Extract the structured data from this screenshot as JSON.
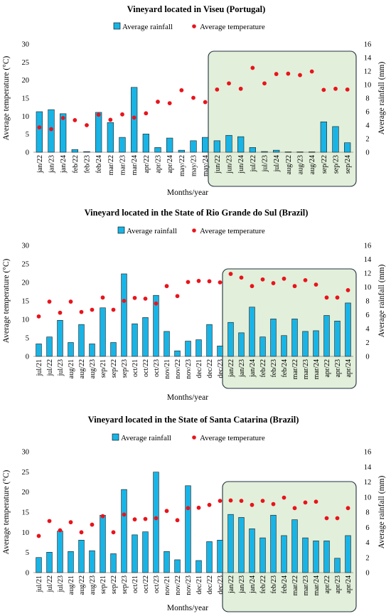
{
  "chart_data": [
    {
      "type": "bar",
      "title": "Vineyard located in Viseu (Portugal)",
      "xlabel": "Months/year",
      "ylabel_left": "Average temperature (°C)",
      "ylabel_right": "Average rainfall (mm)",
      "ylim_left": [
        0,
        30
      ],
      "yticks_left": [
        "0",
        "5",
        "10",
        "15",
        "20",
        "25",
        "30"
      ],
      "ylim_right": [
        0,
        16
      ],
      "yticks_right": [
        "0",
        "2",
        "4",
        "6",
        "8",
        "10",
        "12",
        "14",
        "16"
      ],
      "legend": {
        "rainfall": "Average rainfall",
        "temperature": "Average temperature"
      },
      "categories": [
        "jan/22",
        "jan/23",
        "jan/24",
        "feb/22",
        "feb/23",
        "feb/24",
        "mar/22",
        "mar/23",
        "mar/24",
        "apr/22",
        "apr/23",
        "apr/24",
        "may/22",
        "may/23",
        "may/24",
        "jun/22",
        "jun/23",
        "jun/24",
        "jul/22",
        "jul/23",
        "jul/24",
        "aug/22",
        "aug/23",
        "aug/24",
        "sep/22",
        "sep/23",
        "sep/24"
      ],
      "series": [
        {
          "name": "Average rainfall",
          "axis": "right",
          "kind": "bar",
          "color": "#19b4e6",
          "values": [
            6.0,
            6.3,
            5.7,
            0.4,
            0.1,
            5.9,
            4.4,
            2.2,
            9.6,
            2.7,
            0.7,
            2.1,
            0.3,
            1.7,
            2.2,
            1.7,
            2.5,
            2.3,
            0.7,
            0.1,
            0.3,
            0.05,
            0.05,
            0.05,
            4.5,
            3.8,
            1.4
          ]
        },
        {
          "name": "Average temperature",
          "axis": "left",
          "kind": "point",
          "color": "#e8141c",
          "values": [
            6.9,
            6.4,
            9.5,
            8.9,
            7.5,
            10.4,
            9.0,
            10.5,
            9.6,
            10.8,
            14.0,
            13.6,
            17.2,
            15.1,
            13.9,
            17.4,
            19.1,
            17.6,
            23.4,
            19.1,
            21.7,
            21.8,
            21.4,
            22.4,
            17.3,
            17.6,
            17.4
          ]
        }
      ],
      "highlight_from": "jun/22"
    },
    {
      "type": "bar",
      "title": "Vineyard located in the State of Rio Grande do Sul (Brazil)",
      "xlabel": "Months/year",
      "ylabel_left": "Average temperature (°C)",
      "ylabel_right": "Average rainfall (mm)",
      "ylim_left": [
        0,
        30
      ],
      "yticks_left": [
        "0",
        "5",
        "10",
        "15",
        "20",
        "25",
        "30"
      ],
      "ylim_right": [
        0,
        16
      ],
      "yticks_right": [
        "0",
        "2",
        "4",
        "6",
        "8",
        "10",
        "12",
        "14",
        "16"
      ],
      "legend": {
        "rainfall": "Average rainfall",
        "temperature": "Average temperature"
      },
      "categories": [
        "jul/21",
        "jul/22",
        "jul/23",
        "aug/21",
        "aug/22",
        "aug/23",
        "sep/21",
        "sep/22",
        "sep/23",
        "oct/21",
        "oct/22",
        "oct/23",
        "nov/21",
        "nov/22",
        "nov/23",
        "dec/21",
        "dec/22",
        "dec/23",
        "jan/22",
        "jan/23",
        "jan/24",
        "feb/22",
        "feb/23",
        "feb/24",
        "mar/22",
        "mar/23",
        "mar/24",
        "apr/22",
        "apr/23",
        "apr/24"
      ],
      "series": [
        {
          "name": "Average rainfall",
          "axis": "right",
          "kind": "bar",
          "color": "#19b4e6",
          "values": [
            1.8,
            2.8,
            5.2,
            2.0,
            4.6,
            1.8,
            7.0,
            2.0,
            11.9,
            4.7,
            5.6,
            8.8,
            3.6,
            0.8,
            2.2,
            2.4,
            4.6,
            1.5,
            4.9,
            3.4,
            7.1,
            2.8,
            5.4,
            3.0,
            5.4,
            3.6,
            3.7,
            5.9,
            5.1,
            7.7
          ]
        },
        {
          "name": "Average temperature",
          "axis": "left",
          "kind": "point",
          "color": "#e8141c",
          "values": [
            10.8,
            14.8,
            11.8,
            14.8,
            12.0,
            12.6,
            15.9,
            12.6,
            15.0,
            15.8,
            15.6,
            14.3,
            19.0,
            16.3,
            20.1,
            20.4,
            20.3,
            20.0,
            22.3,
            21.3,
            19.0,
            20.8,
            19.8,
            21.0,
            19.0,
            20.6,
            19.4,
            15.9,
            15.9,
            17.9
          ]
        }
      ],
      "highlight_from": "jan/22"
    },
    {
      "type": "bar",
      "title": "Vineyard located in the State of Santa Catarina (Brazil)",
      "xlabel": "Months/year",
      "ylabel_left": "Average temperature (°C)",
      "ylabel_right": "Average rainfall (mm)",
      "ylim_left": [
        0,
        30
      ],
      "yticks_left": [
        "0",
        "5",
        "10",
        "15",
        "20",
        "25",
        "30"
      ],
      "ylim_right": [
        0,
        16
      ],
      "yticks_right": [
        "0",
        "2",
        "4",
        "6",
        "8",
        "10",
        "12",
        "14",
        "16"
      ],
      "legend": {
        "rainfall": "Average rainfall",
        "temperature": "Average temperature"
      },
      "categories": [
        "jul/21",
        "jul/22",
        "jul/23",
        "aug/21",
        "aug/22",
        "aug/23",
        "sep/21",
        "sep/22",
        "sep/23",
        "oct/21",
        "oct/22",
        "oct/23",
        "nov/21",
        "nov/22",
        "nov/23",
        "dec/21",
        "dec/22",
        "dec/23",
        "jan/22",
        "jan/23",
        "jan/24",
        "feb/22",
        "feb/23",
        "feb/24",
        "mar/22",
        "mar/23",
        "mar/24",
        "apr/22",
        "apr/23",
        "apr/24"
      ],
      "series": [
        {
          "name": "Average rainfall",
          "axis": "right",
          "kind": "bar",
          "color": "#19b4e6",
          "values": [
            2.0,
            2.7,
            5.5,
            2.8,
            4.3,
            2.9,
            7.6,
            2.5,
            11.0,
            5.0,
            5.4,
            13.3,
            2.8,
            1.7,
            11.5,
            1.6,
            4.1,
            4.3,
            7.7,
            7.3,
            5.8,
            4.6,
            7.6,
            4.9,
            7.0,
            4.6,
            4.2,
            4.2,
            1.9,
            4.9
          ]
        },
        {
          "name": "Average temperature",
          "axis": "left",
          "kind": "point",
          "color": "#e8141c",
          "values": [
            9.1,
            12.8,
            10.5,
            12.5,
            10.0,
            11.9,
            14.0,
            10.0,
            14.4,
            13.2,
            13.3,
            13.5,
            15.3,
            13.0,
            16.0,
            16.1,
            16.8,
            17.8,
            17.9,
            17.8,
            16.8,
            17.8,
            17.0,
            18.6,
            16.0,
            17.4,
            17.6,
            13.5,
            13.5,
            16.0
          ]
        }
      ],
      "highlight_from": "jan/22"
    }
  ]
}
